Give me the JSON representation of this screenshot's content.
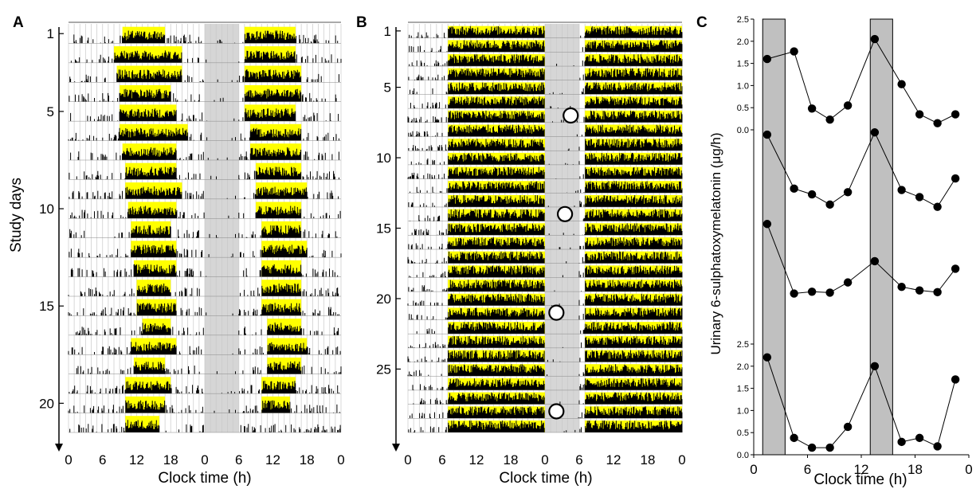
{
  "colors": {
    "activity": "#000000",
    "light": "#ffff00",
    "night_band": "#c8c8c8",
    "grid": "#cfcfcf",
    "shaded_bar": "#c0c0c0"
  },
  "panels": {
    "A": {
      "label": "A",
      "ylabel": "Study days",
      "xlabel": "Clock time (h)",
      "x_ticks": [
        "0",
        "6",
        "12",
        "18",
        "0",
        "6",
        "12",
        "18",
        "0"
      ],
      "y_ticks": [
        "1",
        "5",
        "10",
        "15",
        "20"
      ]
    },
    "B": {
      "label": "B",
      "xlabel": "Clock time (h)",
      "x_ticks": [
        "0",
        "6",
        "12",
        "18",
        "0",
        "6",
        "12",
        "18",
        "0"
      ],
      "y_ticks": [
        "1",
        "5",
        "10",
        "15",
        "20",
        "25"
      ]
    },
    "C": {
      "label": "C",
      "ylabel": "Urinary 6-sulphatoxymelatonin (μg/h)",
      "xlabel": "Clock time (h)",
      "x_ticks": [
        "0",
        "6",
        "12",
        "18",
        "0"
      ],
      "y_ticks_top": [
        "2.5",
        "2.0",
        "1.5",
        "1.0",
        "0.5",
        "0.0"
      ],
      "y_ticks_bottom": [
        "2.5",
        "2.0",
        "1.5",
        "1.0",
        "0.5",
        "0.0"
      ]
    }
  },
  "chart_data": [
    {
      "type": "heatmap",
      "panel": "A",
      "description_of_marks": "double-plotted actogram",
      "days": 21,
      "x_range_hours": [
        0,
        48
      ],
      "y_range_days": [
        1,
        21
      ],
      "dark_band_hours": [
        24,
        30
      ],
      "light_windows_by_day": [
        [
          [
            9.5,
            17
          ],
          [
            31,
            40
          ]
        ],
        [
          [
            8,
            20
          ],
          [
            31,
            40
          ]
        ],
        [
          [
            8.5,
            20
          ],
          [
            31,
            41
          ]
        ],
        [
          [
            9,
            18
          ],
          [
            31,
            41
          ]
        ],
        [
          [
            9,
            19
          ],
          [
            31,
            40
          ]
        ],
        [
          [
            9,
            21
          ],
          [
            32,
            41
          ]
        ],
        [
          [
            9.5,
            19
          ],
          [
            32,
            41
          ]
        ],
        [
          [
            10,
            19
          ],
          [
            33,
            41
          ]
        ],
        [
          [
            10,
            20
          ],
          [
            33,
            42
          ]
        ],
        [
          [
            10.5,
            19
          ],
          [
            33,
            41
          ]
        ],
        [
          [
            11,
            18
          ],
          [
            34,
            41
          ]
        ],
        [
          [
            11,
            19
          ],
          [
            34,
            42
          ]
        ],
        [
          [
            11.5,
            19
          ],
          [
            34,
            41
          ]
        ],
        [
          [
            12,
            18
          ],
          [
            34,
            41
          ]
        ],
        [
          [
            12,
            19
          ],
          [
            34,
            41
          ]
        ],
        [
          [
            13,
            18
          ],
          [
            35,
            41
          ]
        ],
        [
          [
            11,
            19
          ],
          [
            35,
            42
          ]
        ],
        [
          [
            11.5,
            17
          ],
          [
            35,
            41
          ]
        ],
        [
          [
            10,
            18
          ],
          [
            34,
            40
          ]
        ],
        [
          [
            10,
            17
          ],
          [
            34,
            39
          ]
        ],
        [
          [
            10,
            16
          ]
        ]
      ]
    },
    {
      "type": "heatmap",
      "panel": "B",
      "description_of_marks": "double-plotted actogram with circled melatonin acrophase markers",
      "days": 29,
      "x_range_hours": [
        0,
        48
      ],
      "y_range_days": [
        1,
        29
      ],
      "dark_band_hours": [
        24,
        30
      ],
      "light_windows_hours": [
        [
          7,
          24
        ],
        [
          31,
          48
        ]
      ],
      "circle_markers": [
        {
          "day": 7,
          "hour": 28.5
        },
        {
          "day": 14,
          "hour": 27.5
        },
        {
          "day": 21,
          "hour": 26
        },
        {
          "day": 28,
          "hour": 26
        }
      ]
    },
    {
      "type": "line",
      "panel": "C",
      "x_range_hours": [
        0,
        48
      ],
      "y_range": [
        0,
        2.5
      ],
      "shaded_intervals_hours": [
        [
          2,
          7
        ],
        [
          26,
          31
        ]
      ],
      "series": [
        {
          "x": [
            3,
            9,
            13,
            17,
            21,
            27,
            33,
            37,
            41,
            45
          ],
          "y": [
            1.6,
            1.77,
            0.48,
            0.23,
            0.55,
            2.05,
            1.03,
            0.35,
            0.15,
            0.35
          ]
        },
        {
          "x": [
            3,
            9,
            13,
            17,
            21,
            27,
            33,
            37,
            41,
            45
          ],
          "y": [
            2.05,
            0.83,
            0.7,
            0.47,
            0.75,
            2.1,
            0.8,
            0.64,
            0.42,
            1.06
          ]
        },
        {
          "x": [
            3,
            9,
            13,
            17,
            21,
            27,
            33,
            37,
            41,
            45
          ],
          "y": [
            2.1,
            0.53,
            0.57,
            0.55,
            0.78,
            1.26,
            0.68,
            0.6,
            0.56,
            1.09
          ]
        },
        {
          "x": [
            3,
            9,
            13,
            17,
            21,
            27,
            33,
            37,
            41,
            45
          ],
          "y": [
            2.2,
            0.38,
            0.16,
            0.16,
            0.63,
            2.0,
            0.29,
            0.38,
            0.19,
            1.7
          ]
        }
      ]
    }
  ]
}
